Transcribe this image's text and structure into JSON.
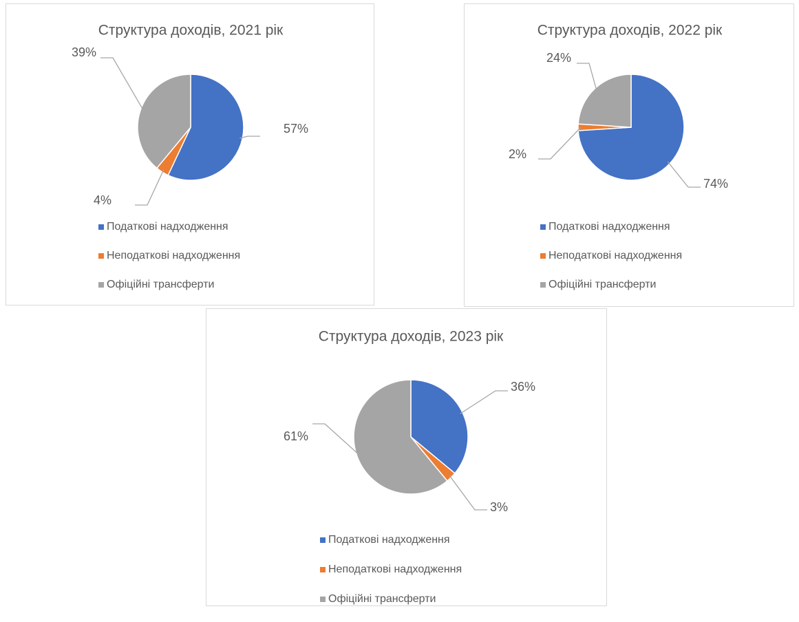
{
  "chart_data": [
    {
      "type": "pie",
      "title": "Структура доходів, 2021 рік",
      "categories": [
        "Податкові надходження",
        "Неподаткові надходження",
        "Офіційні трансферти"
      ],
      "values": [
        57,
        4,
        39
      ],
      "value_labels": [
        "57%",
        "4%",
        "39%"
      ],
      "colors": [
        "#4472c4",
        "#ed7d31",
        "#a5a5a5"
      ]
    },
    {
      "type": "pie",
      "title": "Структура доходів, 2022 рік",
      "categories": [
        "Податкові надходження",
        "Неподаткові надходження",
        "Офіційні трансферти"
      ],
      "values": [
        74,
        2,
        24
      ],
      "value_labels": [
        "74%",
        "2%",
        "24%"
      ],
      "colors": [
        "#4472c4",
        "#ed7d31",
        "#a5a5a5"
      ]
    },
    {
      "type": "pie",
      "title": "Структура доходів, 2023 рік",
      "categories": [
        "Податкові надходження",
        "Неподаткові надходження",
        "Офіційні трансферти"
      ],
      "values": [
        36,
        3,
        61
      ],
      "value_labels": [
        "36%",
        "3%",
        "61%"
      ],
      "colors": [
        "#4472c4",
        "#ed7d31",
        "#a5a5a5"
      ]
    }
  ]
}
